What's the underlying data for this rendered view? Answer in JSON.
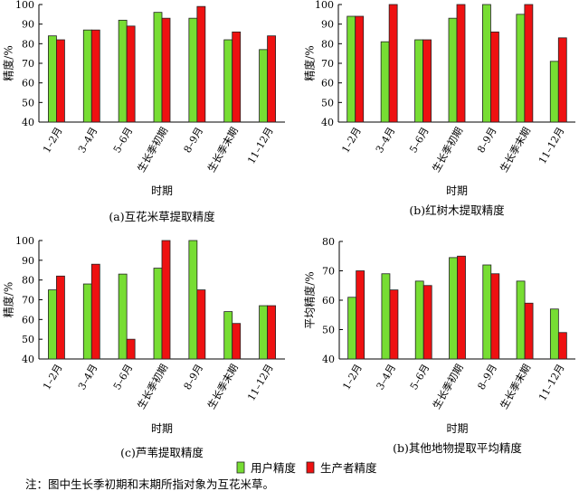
{
  "colors": {
    "user": "#77dd33",
    "producer": "#ee1111",
    "edge": "#222222"
  },
  "legend": {
    "user_label": "用户精度",
    "producer_label": "生产者精度"
  },
  "note": "注：图中生长季初期和末期所指对象为互花米草。",
  "chart_data": [
    {
      "type": "bar",
      "title": "(a)互花米草提取精度",
      "xlabel": "时期",
      "ylabel": "精度/%",
      "ylim": [
        40,
        100
      ],
      "yticks": [
        40,
        50,
        60,
        70,
        80,
        90,
        100
      ],
      "categories": [
        "1–2月",
        "3–4月",
        "5–6月",
        "生长季初期",
        "8–9月",
        "生长季末期",
        "11–12月"
      ],
      "series": [
        {
          "name": "用户精度",
          "values": [
            84,
            87,
            92,
            96,
            93,
            82,
            77
          ]
        },
        {
          "name": "生产者精度",
          "values": [
            82,
            87,
            89,
            93,
            99,
            86,
            84
          ]
        }
      ]
    },
    {
      "type": "bar",
      "title": "(b)红树木提取精度",
      "xlabel": "时期",
      "ylabel": "精度/%",
      "ylim": [
        40,
        100
      ],
      "yticks": [
        40,
        50,
        60,
        70,
        80,
        90,
        100
      ],
      "categories": [
        "1–2月",
        "3–4月",
        "5–6月",
        "生长季初期",
        "8–9月",
        "生长季末期",
        "11–12月"
      ],
      "series": [
        {
          "name": "用户精度",
          "values": [
            94,
            81,
            82,
            93,
            100,
            95,
            71
          ]
        },
        {
          "name": "生产者精度",
          "values": [
            94,
            100,
            82,
            100,
            86,
            100,
            83
          ]
        }
      ]
    },
    {
      "type": "bar",
      "title": "(c)芦苇提取精度",
      "xlabel": "时期",
      "ylabel": "精度/%",
      "ylim": [
        40,
        100
      ],
      "yticks": [
        40,
        50,
        60,
        70,
        80,
        90,
        100
      ],
      "categories": [
        "1–2月",
        "3–4月",
        "5–6月",
        "生长季初期",
        "8–9月",
        "生长季末期",
        "11–12月"
      ],
      "series": [
        {
          "name": "用户精度",
          "values": [
            75,
            78,
            83,
            86,
            100,
            64,
            67
          ]
        },
        {
          "name": "生产者精度",
          "values": [
            82,
            88,
            50,
            100,
            75,
            58,
            67
          ]
        }
      ]
    },
    {
      "type": "bar",
      "title": "(b)其他地物提取平均精度",
      "xlabel": "时期",
      "ylabel": "平均精度/%",
      "ylim": [
        40,
        80
      ],
      "yticks": [
        40,
        50,
        60,
        70,
        80
      ],
      "categories": [
        "1–2月",
        "3–4月",
        "5–6月",
        "生长季初期",
        "8–9月",
        "生长季末期",
        "11–12月"
      ],
      "series": [
        {
          "name": "用户精度",
          "values": [
            61,
            69,
            66.5,
            74.5,
            72,
            66.5,
            57
          ]
        },
        {
          "name": "生产者精度",
          "values": [
            70,
            63.5,
            65,
            75,
            69,
            59,
            49
          ]
        }
      ]
    }
  ]
}
